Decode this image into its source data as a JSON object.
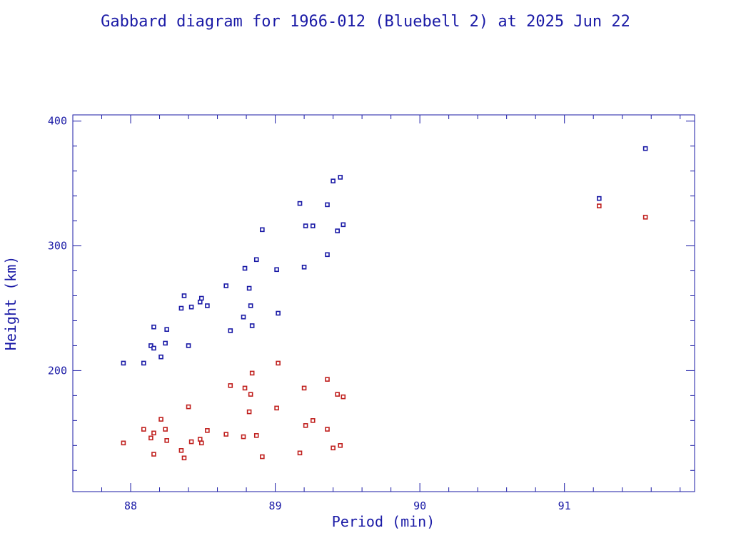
{
  "chart_data": {
    "type": "scatter",
    "title": "Gabbard diagram for 1966-012 (Bluebell 2) at 2025 Jun 22",
    "xlabel": "Period (min)",
    "ylabel": "Height (km)",
    "xlim": [
      87.6,
      91.9
    ],
    "ylim": [
      103,
      405
    ],
    "xticks": [
      88,
      89,
      90,
      91
    ],
    "xtick_labels": [
      "88",
      "89",
      "90",
      "91"
    ],
    "yticks": [
      200,
      300,
      400
    ],
    "ytick_labels": [
      "200",
      "300",
      "400"
    ],
    "grid": false,
    "series": [
      {
        "role": "apogee",
        "color": "#1a1aa6",
        "points": [
          [
            87.95,
            206
          ],
          [
            88.09,
            206
          ],
          [
            88.14,
            220
          ],
          [
            88.16,
            218
          ],
          [
            88.16,
            235
          ],
          [
            88.21,
            211
          ],
          [
            88.24,
            222
          ],
          [
            88.25,
            233
          ],
          [
            88.35,
            250
          ],
          [
            88.37,
            260
          ],
          [
            88.4,
            220
          ],
          [
            88.42,
            251
          ],
          [
            88.48,
            255
          ],
          [
            88.49,
            258
          ],
          [
            88.53,
            252
          ],
          [
            88.66,
            268
          ],
          [
            88.69,
            232
          ],
          [
            88.78,
            243
          ],
          [
            88.79,
            282
          ],
          [
            88.82,
            266
          ],
          [
            88.83,
            252
          ],
          [
            88.84,
            236
          ],
          [
            88.87,
            289
          ],
          [
            88.91,
            313
          ],
          [
            89.01,
            281
          ],
          [
            89.02,
            246
          ],
          [
            89.17,
            334
          ],
          [
            89.2,
            283
          ],
          [
            89.21,
            316
          ],
          [
            89.26,
            316
          ],
          [
            89.36,
            293
          ],
          [
            89.36,
            333
          ],
          [
            89.4,
            352
          ],
          [
            89.43,
            312
          ],
          [
            89.45,
            355
          ],
          [
            89.47,
            317
          ],
          [
            91.24,
            338
          ],
          [
            91.56,
            378
          ]
        ]
      },
      {
        "role": "perigee",
        "color": "#c0201e",
        "points": [
          [
            87.95,
            142
          ],
          [
            88.09,
            153
          ],
          [
            88.14,
            146
          ],
          [
            88.16,
            150
          ],
          [
            88.16,
            133
          ],
          [
            88.21,
            161
          ],
          [
            88.24,
            153
          ],
          [
            88.25,
            144
          ],
          [
            88.35,
            136
          ],
          [
            88.37,
            130
          ],
          [
            88.4,
            171
          ],
          [
            88.42,
            143
          ],
          [
            88.48,
            145
          ],
          [
            88.49,
            142
          ],
          [
            88.53,
            152
          ],
          [
            88.66,
            149
          ],
          [
            88.69,
            188
          ],
          [
            88.78,
            147
          ],
          [
            88.79,
            186
          ],
          [
            88.82,
            167
          ],
          [
            88.83,
            181
          ],
          [
            88.84,
            198
          ],
          [
            88.87,
            148
          ],
          [
            88.91,
            131
          ],
          [
            89.01,
            170
          ],
          [
            89.02,
            206
          ],
          [
            89.17,
            134
          ],
          [
            89.2,
            186
          ],
          [
            89.21,
            156
          ],
          [
            89.26,
            160
          ],
          [
            89.36,
            153
          ],
          [
            89.36,
            193
          ],
          [
            89.4,
            138
          ],
          [
            89.43,
            181
          ],
          [
            89.45,
            140
          ],
          [
            89.47,
            179
          ],
          [
            91.24,
            332
          ],
          [
            91.56,
            323
          ]
        ]
      }
    ]
  }
}
